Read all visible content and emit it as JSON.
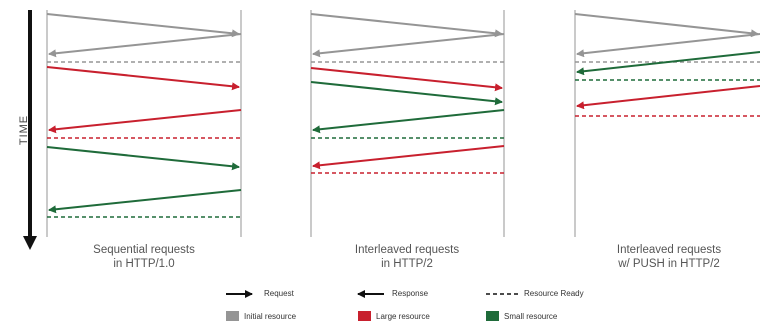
{
  "time_axis": {
    "label": "TIME"
  },
  "colors": {
    "initial": "#959595",
    "large": "#c8202e",
    "small": "#1f6b3a",
    "lifeline": "#b9b9b9",
    "arrow_black": "#111111"
  },
  "panels": [
    {
      "id": "sequential",
      "caption_line1": "Sequential requests",
      "caption_line2": "in HTTP/1.0",
      "events": [
        {
          "type": "request",
          "resource": "initial"
        },
        {
          "type": "response",
          "resource": "initial"
        },
        {
          "type": "ready",
          "resource": "initial"
        },
        {
          "type": "request",
          "resource": "large"
        },
        {
          "type": "response",
          "resource": "large"
        },
        {
          "type": "ready",
          "resource": "large"
        },
        {
          "type": "request",
          "resource": "small"
        },
        {
          "type": "response",
          "resource": "small"
        },
        {
          "type": "ready",
          "resource": "small"
        }
      ]
    },
    {
      "id": "interleaved",
      "caption_line1": "Interleaved requests",
      "caption_line2": "in HTTP/2",
      "events": [
        {
          "type": "request",
          "resource": "initial"
        },
        {
          "type": "response",
          "resource": "initial"
        },
        {
          "type": "ready",
          "resource": "initial"
        },
        {
          "type": "request",
          "resource": "large"
        },
        {
          "type": "request",
          "resource": "small"
        },
        {
          "type": "response",
          "resource": "small"
        },
        {
          "type": "ready",
          "resource": "small"
        },
        {
          "type": "response",
          "resource": "large"
        },
        {
          "type": "ready",
          "resource": "large"
        }
      ]
    },
    {
      "id": "push",
      "caption_line1": "Interleaved requests",
      "caption_line2": "w/ PUSH in HTTP/2",
      "events": [
        {
          "type": "request",
          "resource": "initial"
        },
        {
          "type": "response",
          "resource": "initial"
        },
        {
          "type": "ready",
          "resource": "initial"
        },
        {
          "type": "response",
          "resource": "small"
        },
        {
          "type": "ready",
          "resource": "small"
        },
        {
          "type": "response",
          "resource": "large"
        },
        {
          "type": "ready",
          "resource": "large"
        }
      ]
    }
  ],
  "legend": {
    "request": "Request",
    "response": "Response",
    "ready": "Resource Ready",
    "initial": "Initial resource",
    "large": "Large resource",
    "small": "Small resource"
  }
}
